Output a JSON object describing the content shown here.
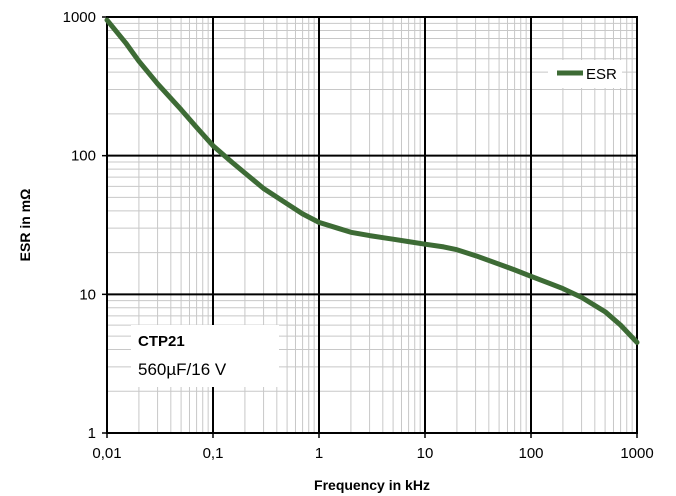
{
  "chart_data": {
    "type": "line",
    "xlabel": "Frequency in kHz",
    "ylabel": "ESR in mΩ",
    "x_scale": "log",
    "y_scale": "log",
    "xlim": [
      0.01,
      1000
    ],
    "ylim": [
      1,
      1000
    ],
    "x_ticks": [
      "0,01",
      "0,1",
      "1",
      "10",
      "100",
      "1000"
    ],
    "y_ticks": [
      "1",
      "10",
      "100",
      "1000"
    ],
    "grid": true,
    "legend": {
      "position": "top-right",
      "entries": [
        "ESR"
      ]
    },
    "annotation": {
      "title": "CTP21",
      "subtitle": "560µF/16 V"
    },
    "series": [
      {
        "name": "ESR",
        "color": "#3d6b35",
        "x": [
          0.01,
          0.015,
          0.02,
          0.03,
          0.05,
          0.07,
          0.1,
          0.15,
          0.2,
          0.3,
          0.5,
          0.7,
          1,
          1.5,
          2,
          3,
          5,
          7,
          10,
          15,
          20,
          30,
          50,
          70,
          100,
          150,
          200,
          300,
          500,
          700,
          1000
        ],
        "y": [
          950,
          650,
          480,
          330,
          215,
          160,
          118,
          90,
          75,
          58,
          45,
          38,
          33,
          30,
          28,
          26.5,
          25,
          24,
          23,
          22,
          21,
          19,
          16.5,
          15,
          13.5,
          12,
          11,
          9.5,
          7.5,
          6,
          4.5
        ]
      }
    ]
  }
}
